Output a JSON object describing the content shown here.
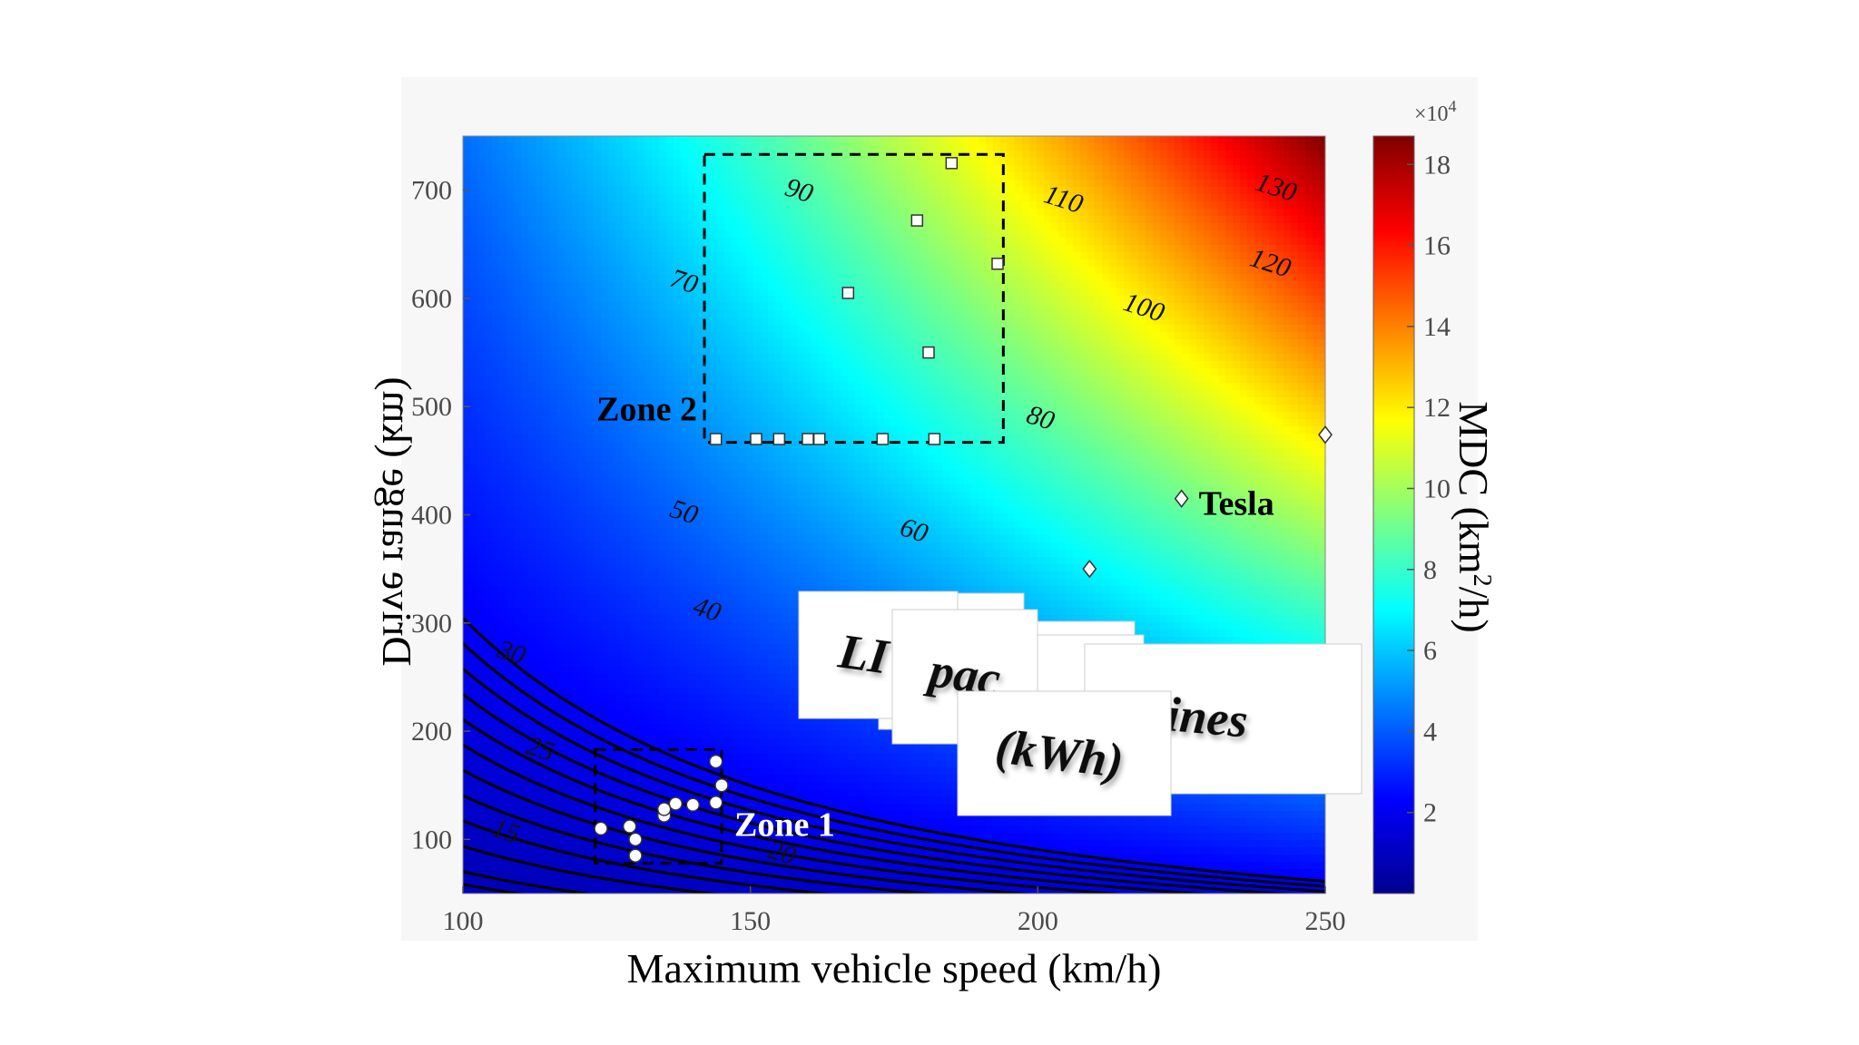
{
  "chart_data": {
    "type": "heatmap",
    "xlabel": "Maximum vehicle speed (km/h)",
    "ylabel": "Drive range (km)",
    "xlim": [
      100,
      250
    ],
    "ylim": [
      50,
      750
    ],
    "x_ticks": [
      "100",
      "150",
      "200",
      "250"
    ],
    "y_ticks": [
      "100",
      "200",
      "300",
      "400",
      "500",
      "600",
      "700"
    ],
    "colorbar": {
      "label_main": "MDC (km",
      "label_sup": "2",
      "label_end": "/h)",
      "multiplier_base": "×10",
      "multiplier_exp": "4",
      "range": [
        0,
        18.7
      ],
      "ticks": [
        "2",
        "4",
        "6",
        "8",
        "10",
        "12",
        "14",
        "16",
        "18"
      ],
      "colormap": "jet"
    },
    "contours": [
      {
        "level": 15,
        "label": "15",
        "label_at": [
          107,
          100
        ]
      },
      {
        "level": 20,
        "label": "20",
        "label_at": [
          155,
          80
        ]
      },
      {
        "level": 25,
        "label": "25",
        "label_at": [
          113,
          176
        ]
      },
      {
        "level": 30,
        "label": "30",
        "label_at": [
          108,
          265
        ]
      },
      {
        "level": 40,
        "label": "40",
        "label_at": [
          142,
          305
        ]
      },
      {
        "level": 50,
        "label": "50",
        "label_at": [
          138,
          395
        ]
      },
      {
        "level": 60,
        "label": "60",
        "label_at": [
          178,
          378
        ]
      },
      {
        "level": 70,
        "label": "70",
        "label_at": [
          138,
          608
        ]
      },
      {
        "level": 80,
        "label": "80",
        "label_at": [
          200,
          482
        ]
      },
      {
        "level": 90,
        "label": "90",
        "label_at": [
          158,
          692
        ]
      },
      {
        "level": 100,
        "label": "100",
        "label_at": [
          218,
          584
        ]
      },
      {
        "level": 110,
        "label": "110",
        "label_at": [
          204,
          684
        ]
      },
      {
        "level": 120,
        "label": "120",
        "label_at": [
          240,
          625
        ]
      },
      {
        "level": 130,
        "label": "130",
        "label_at": [
          241,
          695
        ]
      }
    ],
    "zones": [
      {
        "name": "Zone 1",
        "label": "Zone 1",
        "x_range": [
          123,
          145
        ],
        "y_range": [
          78,
          183
        ],
        "label_color": "#ffffff"
      },
      {
        "name": "Zone 2",
        "label": "Zone 2",
        "x_range": [
          142,
          194
        ],
        "y_range": [
          467,
          733
        ],
        "label_color": "#000000"
      }
    ],
    "zone1_points": [
      {
        "x": 124,
        "y": 110
      },
      {
        "x": 129,
        "y": 112
      },
      {
        "x": 130,
        "y": 100
      },
      {
        "x": 130,
        "y": 85
      },
      {
        "x": 135,
        "y": 122
      },
      {
        "x": 135,
        "y": 128
      },
      {
        "x": 137,
        "y": 133
      },
      {
        "x": 140,
        "y": 132
      },
      {
        "x": 144,
        "y": 134
      },
      {
        "x": 145,
        "y": 150
      },
      {
        "x": 144,
        "y": 172
      }
    ],
    "zone2_points": [
      {
        "x": 144,
        "y": 470
      },
      {
        "x": 151,
        "y": 470
      },
      {
        "x": 155,
        "y": 470
      },
      {
        "x": 160,
        "y": 470
      },
      {
        "x": 162,
        "y": 470
      },
      {
        "x": 173,
        "y": 470
      },
      {
        "x": 182,
        "y": 470
      },
      {
        "x": 181,
        "y": 550
      },
      {
        "x": 167,
        "y": 605
      },
      {
        "x": 193,
        "y": 632
      },
      {
        "x": 179,
        "y": 672
      },
      {
        "x": 185,
        "y": 725
      }
    ],
    "tesla_points": [
      {
        "x": 209,
        "y": 350
      },
      {
        "x": 225,
        "y": 415
      },
      {
        "x": 250,
        "y": 474
      }
    ],
    "annotations": [
      {
        "text": "Tesla",
        "x": 228,
        "y": 400
      }
    ]
  },
  "overlay_cards": [
    {
      "text": "LI"
    },
    {
      "text": "pac"
    },
    {
      "text": "(kWh)"
    },
    {
      "text": "p lines"
    }
  ],
  "colors": {
    "figure_bg": "#f7f7f7",
    "contour": "#000000",
    "marker_fill": "#ffffff",
    "zone_box": "#000000"
  }
}
